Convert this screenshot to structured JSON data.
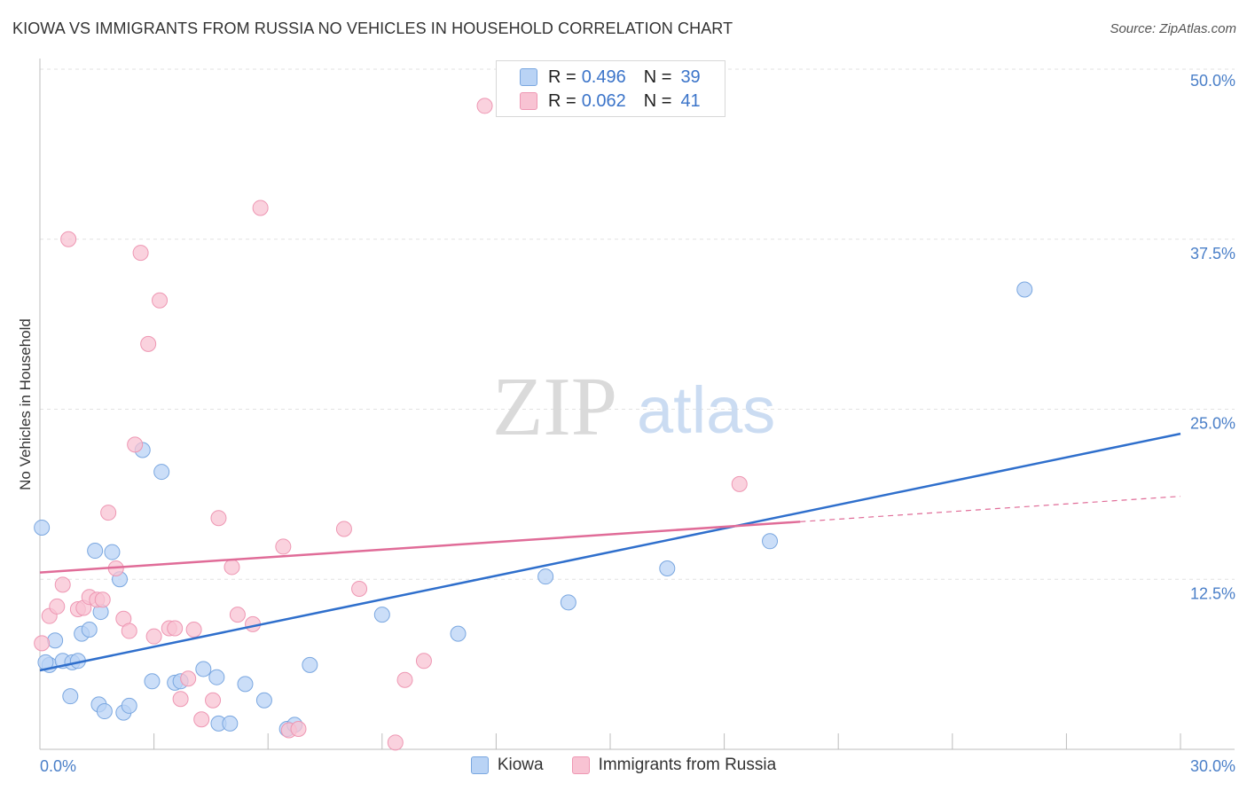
{
  "title": "KIOWA VS IMMIGRANTS FROM RUSSIA NO VEHICLES IN HOUSEHOLD CORRELATION CHART",
  "source": "Source: ZipAtlas.com",
  "watermark": {
    "zip": "ZIP",
    "atlas": "atlas"
  },
  "legend_top": [
    {
      "r_label": "R =",
      "r_value": "0.496",
      "n_label": "N =",
      "n_value": "39"
    },
    {
      "r_label": "R =",
      "r_value": "0.062",
      "n_label": "N =",
      "n_value": "41"
    }
  ],
  "legend_bottom": [
    "Kiowa",
    "Immigrants from Russia"
  ],
  "colors": {
    "kiowa_fill": "#b9d3f5",
    "kiowa_stroke": "#7aa7e0",
    "kiowa_line": "#2f6fcc",
    "russia_fill": "#f8c3d3",
    "russia_stroke": "#ee97b3",
    "russia_line": "#e06c98",
    "tick": "#4a7fc8",
    "grid": "#e2e2e2"
  },
  "chart_data": {
    "type": "scatter",
    "title": "KIOWA VS IMMIGRANTS FROM RUSSIA NO VEHICLES IN HOUSEHOLD CORRELATION CHART",
    "xlabel": "",
    "ylabel": "No Vehicles in Household",
    "xlim": [
      0,
      30
    ],
    "ylim": [
      0,
      50
    ],
    "x_tick_labels": [
      "0.0%",
      "30.0%"
    ],
    "y_tick_values": [
      12.5,
      25.0,
      37.5,
      50.0
    ],
    "y_tick_labels": [
      "12.5%",
      "25.0%",
      "37.5%",
      "50.0%"
    ],
    "grid": true,
    "series": [
      {
        "name": "Kiowa",
        "r": 0.496,
        "n": 39,
        "trend": {
          "x": [
            0,
            30
          ],
          "y": [
            5.8,
            23.2
          ],
          "dashed_after": null
        },
        "points": [
          {
            "x": 0.05,
            "y": 16.3
          },
          {
            "x": 0.4,
            "y": 8.0
          },
          {
            "x": 0.25,
            "y": 6.2
          },
          {
            "x": 0.6,
            "y": 6.5
          },
          {
            "x": 0.85,
            "y": 6.4
          },
          {
            "x": 1.0,
            "y": 6.5
          },
          {
            "x": 0.8,
            "y": 3.9
          },
          {
            "x": 1.1,
            "y": 8.5
          },
          {
            "x": 1.3,
            "y": 8.8
          },
          {
            "x": 1.6,
            "y": 10.1
          },
          {
            "x": 1.45,
            "y": 14.6
          },
          {
            "x": 1.9,
            "y": 14.5
          },
          {
            "x": 2.1,
            "y": 12.5
          },
          {
            "x": 1.55,
            "y": 3.3
          },
          {
            "x": 1.7,
            "y": 2.8
          },
          {
            "x": 2.2,
            "y": 2.7
          },
          {
            "x": 2.35,
            "y": 3.2
          },
          {
            "x": 2.7,
            "y": 22.0
          },
          {
            "x": 3.2,
            "y": 20.4
          },
          {
            "x": 2.95,
            "y": 5.0
          },
          {
            "x": 3.55,
            "y": 4.9
          },
          {
            "x": 3.7,
            "y": 5.0
          },
          {
            "x": 4.3,
            "y": 5.9
          },
          {
            "x": 4.65,
            "y": 5.3
          },
          {
            "x": 4.7,
            "y": 1.9
          },
          {
            "x": 5.0,
            "y": 1.9
          },
          {
            "x": 5.4,
            "y": 4.8
          },
          {
            "x": 5.9,
            "y": 3.6
          },
          {
            "x": 6.5,
            "y": 1.5
          },
          {
            "x": 6.7,
            "y": 1.8
          },
          {
            "x": 7.1,
            "y": 6.2
          },
          {
            "x": 9.0,
            "y": 9.9
          },
          {
            "x": 11.0,
            "y": 8.5
          },
          {
            "x": 13.3,
            "y": 12.7
          },
          {
            "x": 13.9,
            "y": 10.8
          },
          {
            "x": 16.5,
            "y": 13.3
          },
          {
            "x": 19.2,
            "y": 15.3
          },
          {
            "x": 25.9,
            "y": 33.8
          },
          {
            "x": 0.15,
            "y": 6.4
          }
        ]
      },
      {
        "name": "Immigrants from Russia",
        "r": 0.062,
        "n": 41,
        "trend": {
          "x": [
            0,
            30
          ],
          "y": [
            13.0,
            18.6
          ],
          "dashed_after": 20.0
        },
        "points": [
          {
            "x": 0.05,
            "y": 7.8
          },
          {
            "x": 0.25,
            "y": 9.8
          },
          {
            "x": 0.45,
            "y": 10.5
          },
          {
            "x": 0.6,
            "y": 12.1
          },
          {
            "x": 0.75,
            "y": 37.5
          },
          {
            "x": 1.0,
            "y": 10.3
          },
          {
            "x": 1.15,
            "y": 10.4
          },
          {
            "x": 1.3,
            "y": 11.2
          },
          {
            "x": 1.5,
            "y": 11.0
          },
          {
            "x": 1.65,
            "y": 11.0
          },
          {
            "x": 1.8,
            "y": 17.4
          },
          {
            "x": 2.0,
            "y": 13.3
          },
          {
            "x": 2.2,
            "y": 9.6
          },
          {
            "x": 2.35,
            "y": 8.7
          },
          {
            "x": 2.5,
            "y": 22.4
          },
          {
            "x": 2.65,
            "y": 36.5
          },
          {
            "x": 2.85,
            "y": 29.8
          },
          {
            "x": 3.15,
            "y": 33.0
          },
          {
            "x": 3.0,
            "y": 8.3
          },
          {
            "x": 3.4,
            "y": 8.9
          },
          {
            "x": 3.55,
            "y": 8.9
          },
          {
            "x": 3.7,
            "y": 3.7
          },
          {
            "x": 3.9,
            "y": 5.2
          },
          {
            "x": 4.05,
            "y": 8.8
          },
          {
            "x": 4.25,
            "y": 2.2
          },
          {
            "x": 4.55,
            "y": 3.6
          },
          {
            "x": 4.7,
            "y": 17.0
          },
          {
            "x": 5.05,
            "y": 13.4
          },
          {
            "x": 5.2,
            "y": 9.9
          },
          {
            "x": 5.6,
            "y": 9.2
          },
          {
            "x": 5.8,
            "y": 39.8
          },
          {
            "x": 6.4,
            "y": 14.9
          },
          {
            "x": 6.55,
            "y": 1.4
          },
          {
            "x": 6.8,
            "y": 1.5
          },
          {
            "x": 8.0,
            "y": 16.2
          },
          {
            "x": 8.4,
            "y": 11.8
          },
          {
            "x": 9.35,
            "y": 0.5
          },
          {
            "x": 9.6,
            "y": 5.1
          },
          {
            "x": 10.1,
            "y": 6.5
          },
          {
            "x": 11.7,
            "y": 47.3
          },
          {
            "x": 18.4,
            "y": 19.5
          }
        ]
      }
    ]
  }
}
